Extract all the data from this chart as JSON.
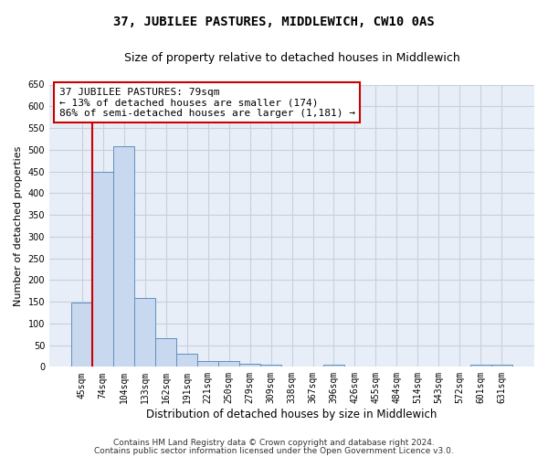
{
  "title": "37, JUBILEE PASTURES, MIDDLEWICH, CW10 0AS",
  "subtitle": "Size of property relative to detached houses in Middlewich",
  "xlabel": "Distribution of detached houses by size in Middlewich",
  "ylabel": "Number of detached properties",
  "categories": [
    "45sqm",
    "74sqm",
    "104sqm",
    "133sqm",
    "162sqm",
    "191sqm",
    "221sqm",
    "250sqm",
    "279sqm",
    "309sqm",
    "338sqm",
    "367sqm",
    "396sqm",
    "426sqm",
    "455sqm",
    "484sqm",
    "514sqm",
    "543sqm",
    "572sqm",
    "601sqm",
    "631sqm"
  ],
  "values": [
    147,
    450,
    507,
    158,
    65,
    30,
    14,
    14,
    8,
    5,
    0,
    0,
    5,
    0,
    0,
    0,
    0,
    0,
    0,
    5,
    5
  ],
  "bar_color": "#c8d8ee",
  "bar_edge_color": "#6090c0",
  "grid_color": "#c8d0dc",
  "background_color": "#ffffff",
  "plot_bg_color": "#e8eef8",
  "red_line_color": "#cc0000",
  "red_line_index": 1,
  "annotation_text": "37 JUBILEE PASTURES: 79sqm\n← 13% of detached houses are smaller (174)\n86% of semi-detached houses are larger (1,181) →",
  "annotation_box_color": "#ffffff",
  "annotation_box_edge": "#cc0000",
  "ylim": [
    0,
    650
  ],
  "yticks": [
    0,
    50,
    100,
    150,
    200,
    250,
    300,
    350,
    400,
    450,
    500,
    550,
    600,
    650
  ],
  "footer1": "Contains HM Land Registry data © Crown copyright and database right 2024.",
  "footer2": "Contains public sector information licensed under the Open Government Licence v3.0.",
  "title_fontsize": 10,
  "subtitle_fontsize": 9,
  "xlabel_fontsize": 8.5,
  "ylabel_fontsize": 8,
  "tick_fontsize": 7,
  "annot_fontsize": 8,
  "footer_fontsize": 6.5
}
